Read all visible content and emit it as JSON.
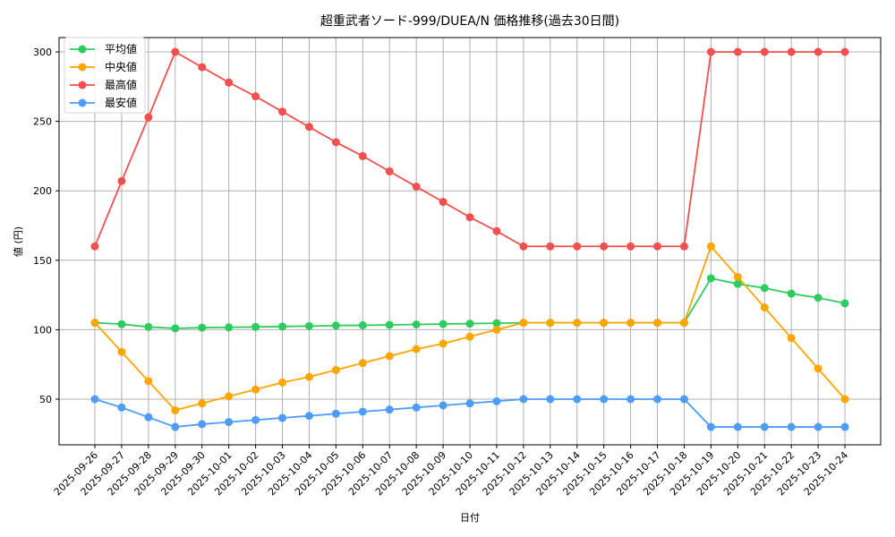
{
  "chart_data": {
    "type": "line",
    "title": "超重武者ソード-999/DUEA/N 価格推移(過去30日間)",
    "xlabel": "日付",
    "ylabel": "値 (円)",
    "ylim": [
      17,
      312
    ],
    "yticks": [
      50,
      100,
      150,
      200,
      250,
      300
    ],
    "grid": true,
    "legend_position": "upper left",
    "categories": [
      "2025-09-26",
      "2025-09-27",
      "2025-09-28",
      "2025-09-29",
      "2025-09-30",
      "2025-10-01",
      "2025-10-02",
      "2025-10-03",
      "2025-10-04",
      "2025-10-05",
      "2025-10-06",
      "2025-10-07",
      "2025-10-08",
      "2025-10-09",
      "2025-10-10",
      "2025-10-11",
      "2025-10-12",
      "2025-10-13",
      "2025-10-14",
      "2025-10-15",
      "2025-10-16",
      "2025-10-17",
      "2025-10-18",
      "2025-10-19",
      "2025-10-20",
      "2025-10-21",
      "2025-10-22",
      "2025-10-23",
      "2025-10-24"
    ],
    "series": [
      {
        "name": "平均値",
        "color": "#2ecc5f",
        "values": [
          105,
          104,
          102,
          101,
          101.5,
          101.7,
          102,
          102.3,
          102.6,
          103,
          103.2,
          103.5,
          103.8,
          104.1,
          104.4,
          104.7,
          105,
          105,
          105,
          105,
          105,
          105,
          105,
          137,
          133,
          130,
          126,
          123,
          119
        ]
      },
      {
        "name": "中央値",
        "color": "#ffa500",
        "values": [
          105,
          84,
          63,
          42,
          47,
          52,
          57,
          62,
          66,
          71,
          76,
          81,
          86,
          90,
          95,
          100,
          105,
          105,
          105,
          105,
          105,
          105,
          105,
          160,
          138,
          116,
          94,
          72,
          50
        ]
      },
      {
        "name": "最高値",
        "color": "#f24f4f",
        "values": [
          160,
          207,
          253,
          300,
          289,
          278,
          268,
          257,
          246,
          235,
          225,
          214,
          203,
          192,
          181,
          171,
          160,
          160,
          160,
          160,
          160,
          160,
          160,
          300,
          300,
          300,
          300,
          300,
          300
        ]
      },
      {
        "name": "最安値",
        "color": "#4d9cf8",
        "values": [
          50,
          44,
          37,
          30,
          32,
          33.5,
          35,
          36.5,
          38,
          39.5,
          41,
          42.5,
          44,
          45.5,
          47,
          48.5,
          50,
          50,
          50,
          50,
          50,
          50,
          50,
          30,
          30,
          30,
          30,
          30,
          30
        ]
      }
    ]
  }
}
